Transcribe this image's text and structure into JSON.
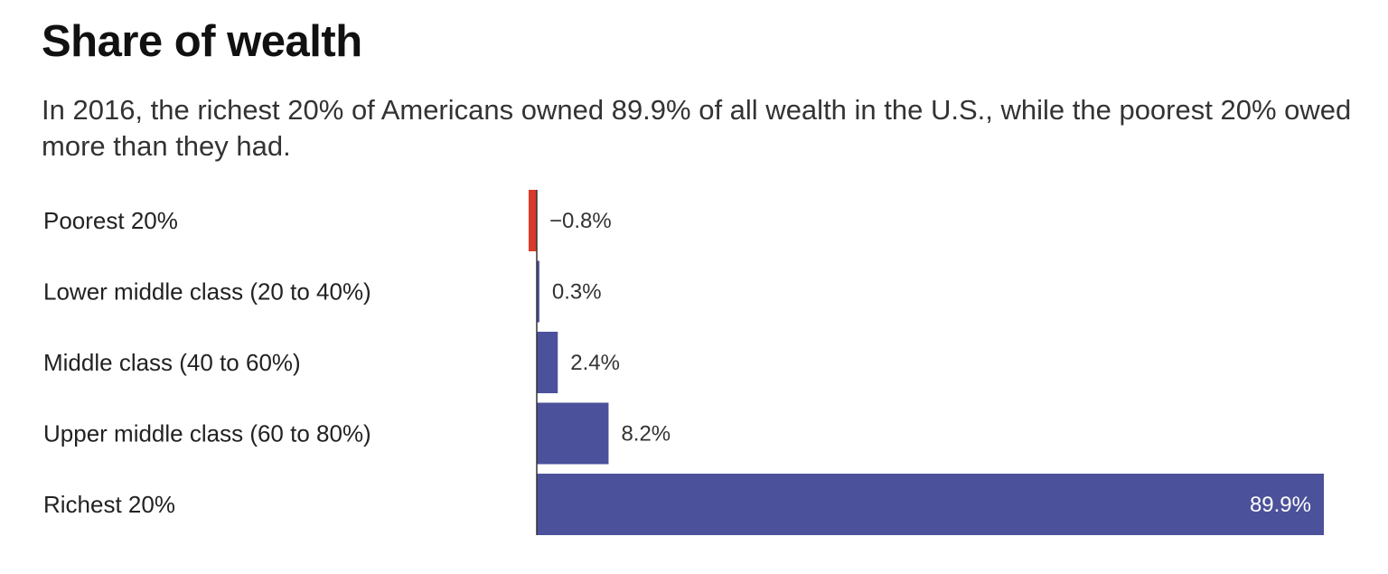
{
  "title": "Share of wealth",
  "subtitle": "In 2016, the richest 20% of Americans owned 89.9% of all wealth in the U.S., while the poorest 20% owed more than they had.",
  "chart_data": {
    "type": "bar",
    "orientation": "horizontal",
    "categories": [
      "Poorest 20%",
      "Lower middle class (20 to 40%)",
      "Middle class (40 to 60%)",
      "Upper middle class (60 to 80%)",
      "Richest 20%"
    ],
    "values": [
      -0.8,
      0.3,
      2.4,
      8.2,
      89.9
    ],
    "value_labels": [
      "−0.8%",
      "0.3%",
      "2.4%",
      "8.2%",
      "89.9%"
    ],
    "colors": {
      "positive": "#4b519a",
      "negative": "#d93a2b",
      "axis": "#333333"
    },
    "xlim": [
      -0.8,
      89.9
    ],
    "grid": false,
    "legend": "none"
  }
}
